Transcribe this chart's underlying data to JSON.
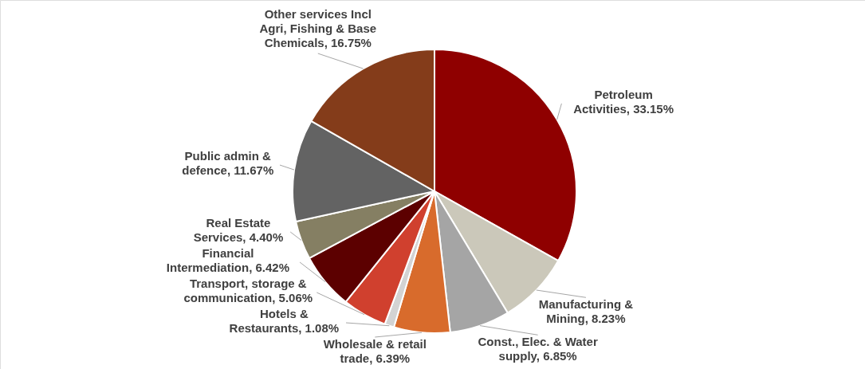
{
  "chart_data": {
    "type": "pie",
    "categories": [
      "Petroleum Activities",
      "Manufacturing & Mining",
      "Const., Elec. & Water supply",
      "Wholesale & retail trade",
      "Hotels & Restaurants",
      "Transport, storage & communication",
      "Financial Intermediation",
      "Real Estate Services",
      "Public admin & defence",
      "Other services Incl Agri, Fishing & Base Chemicals"
    ],
    "values": [
      33.15,
      8.23,
      6.85,
      6.39,
      1.08,
      5.06,
      6.42,
      4.4,
      11.67,
      16.75
    ],
    "value_labels": [
      "33.15%",
      "8.23%",
      "6.85%",
      "6.39%",
      "1.08%",
      "5.06%",
      "6.42%",
      "4.40%",
      "11.67%",
      "16.75%"
    ],
    "colors": [
      "#8f0000",
      "#cbc8ba",
      "#a5a5a5",
      "#d86b2c",
      "#d3d3d3",
      "#d0402e",
      "#5c0000",
      "#857f63",
      "#636363",
      "#843c1a"
    ]
  }
}
